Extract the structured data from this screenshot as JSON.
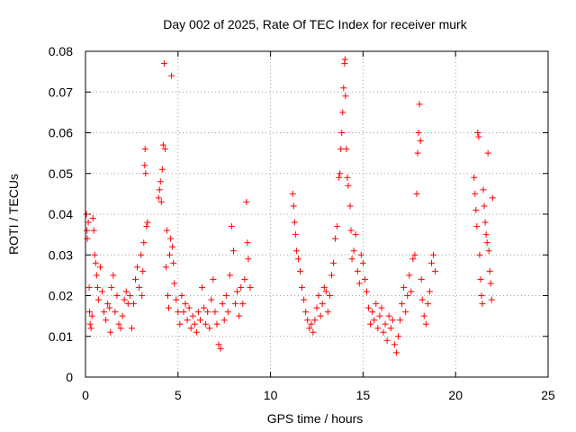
{
  "chart_data": {
    "type": "scatter",
    "title": "Day 002 of 2025, Rate Of TEC Index for receiver murk",
    "xlabel": "GPS time / hours",
    "ylabel": "ROTI / TECUs",
    "xlim": [
      0,
      25
    ],
    "ylim": [
      0,
      0.08
    ],
    "x_ticks": [
      "0",
      "5",
      "10",
      "15",
      "20",
      "25"
    ],
    "y_ticks": [
      "0",
      "0.01",
      "0.02",
      "0.03",
      "0.04",
      "0.05",
      "0.06",
      "0.07",
      "0.08"
    ],
    "grid": true,
    "marker": "+",
    "marker_color": "#ff0000",
    "series": [
      {
        "values_are": "[x_hours, roti]",
        "points": [
          [
            0.05,
            0.04
          ],
          [
            0.08,
            0.036
          ],
          [
            0.1,
            0.034
          ],
          [
            0.15,
            0.038
          ],
          [
            0.2,
            0.022
          ],
          [
            0.22,
            0.016
          ],
          [
            0.25,
            0.013
          ],
          [
            0.3,
            0.012
          ],
          [
            0.35,
            0.015
          ],
          [
            0.4,
            0.039
          ],
          [
            0.45,
            0.036
          ],
          [
            0.5,
            0.03
          ],
          [
            0.55,
            0.028
          ],
          [
            0.6,
            0.025
          ],
          [
            0.65,
            0.022
          ],
          [
            0.7,
            0.019
          ],
          [
            0.8,
            0.027
          ],
          [
            0.9,
            0.021
          ],
          [
            1.0,
            0.016
          ],
          [
            1.1,
            0.014
          ],
          [
            1.2,
            0.018
          ],
          [
            1.3,
            0.017
          ],
          [
            1.35,
            0.011
          ],
          [
            1.4,
            0.022
          ],
          [
            1.5,
            0.025
          ],
          [
            1.6,
            0.016
          ],
          [
            1.7,
            0.02
          ],
          [
            1.8,
            0.013
          ],
          [
            1.9,
            0.012
          ],
          [
            2.0,
            0.015
          ],
          [
            2.1,
            0.019
          ],
          [
            2.2,
            0.021
          ],
          [
            2.3,
            0.018
          ],
          [
            2.4,
            0.02
          ],
          [
            2.5,
            0.012
          ],
          [
            2.6,
            0.018
          ],
          [
            2.7,
            0.024
          ],
          [
            2.8,
            0.027
          ],
          [
            2.9,
            0.022
          ],
          [
            3.0,
            0.03
          ],
          [
            3.05,
            0.02
          ],
          [
            3.1,
            0.026
          ],
          [
            3.15,
            0.033
          ],
          [
            3.2,
            0.052
          ],
          [
            3.22,
            0.056
          ],
          [
            3.25,
            0.05
          ],
          [
            3.3,
            0.037
          ],
          [
            3.35,
            0.038
          ],
          [
            3.95,
            0.044
          ],
          [
            4.0,
            0.046
          ],
          [
            4.05,
            0.048
          ],
          [
            4.1,
            0.043
          ],
          [
            4.15,
            0.051
          ],
          [
            4.2,
            0.057
          ],
          [
            4.25,
            0.077
          ],
          [
            4.3,
            0.056
          ],
          [
            4.35,
            0.027
          ],
          [
            4.4,
            0.036
          ],
          [
            4.45,
            0.02
          ],
          [
            4.5,
            0.017
          ],
          [
            4.55,
            0.03
          ],
          [
            4.6,
            0.034
          ],
          [
            4.65,
            0.074
          ],
          [
            4.7,
            0.032
          ],
          [
            4.75,
            0.028
          ],
          [
            4.8,
            0.023
          ],
          [
            4.9,
            0.019
          ],
          [
            5.0,
            0.016
          ],
          [
            5.1,
            0.013
          ],
          [
            5.2,
            0.02
          ],
          [
            5.3,
            0.016
          ],
          [
            5.4,
            0.018
          ],
          [
            5.5,
            0.014
          ],
          [
            5.6,
            0.017
          ],
          [
            5.7,
            0.012
          ],
          [
            5.8,
            0.015
          ],
          [
            5.9,
            0.013
          ],
          [
            6.0,
            0.011
          ],
          [
            6.1,
            0.016
          ],
          [
            6.2,
            0.014
          ],
          [
            6.3,
            0.022
          ],
          [
            6.4,
            0.017
          ],
          [
            6.5,
            0.013
          ],
          [
            6.6,
            0.016
          ],
          [
            6.7,
            0.012
          ],
          [
            6.8,
            0.019
          ],
          [
            6.9,
            0.024
          ],
          [
            7.0,
            0.016
          ],
          [
            7.1,
            0.013
          ],
          [
            7.2,
            0.008
          ],
          [
            7.3,
            0.007
          ],
          [
            7.4,
            0.018
          ],
          [
            7.5,
            0.014
          ],
          [
            7.6,
            0.02
          ],
          [
            7.7,
            0.016
          ],
          [
            7.8,
            0.025
          ],
          [
            7.9,
            0.037
          ],
          [
            8.0,
            0.031
          ],
          [
            8.1,
            0.018
          ],
          [
            8.2,
            0.021
          ],
          [
            8.3,
            0.015
          ],
          [
            8.4,
            0.022
          ],
          [
            8.5,
            0.018
          ],
          [
            8.6,
            0.024
          ],
          [
            8.7,
            0.043
          ],
          [
            8.75,
            0.033
          ],
          [
            8.8,
            0.029
          ],
          [
            8.9,
            0.022
          ],
          [
            11.2,
            0.045
          ],
          [
            11.25,
            0.042
          ],
          [
            11.3,
            0.038
          ],
          [
            11.35,
            0.035
          ],
          [
            11.4,
            0.031
          ],
          [
            11.5,
            0.029
          ],
          [
            11.6,
            0.026
          ],
          [
            11.7,
            0.022
          ],
          [
            11.8,
            0.019
          ],
          [
            11.9,
            0.016
          ],
          [
            12.0,
            0.014
          ],
          [
            12.1,
            0.012
          ],
          [
            12.2,
            0.013
          ],
          [
            12.3,
            0.011
          ],
          [
            12.4,
            0.014
          ],
          [
            12.5,
            0.017
          ],
          [
            12.6,
            0.02
          ],
          [
            12.7,
            0.015
          ],
          [
            12.8,
            0.018
          ],
          [
            12.9,
            0.022
          ],
          [
            13.0,
            0.021
          ],
          [
            13.1,
            0.016
          ],
          [
            13.2,
            0.02
          ],
          [
            13.3,
            0.025
          ],
          [
            13.4,
            0.028
          ],
          [
            13.5,
            0.034
          ],
          [
            13.6,
            0.037
          ],
          [
            13.7,
            0.049
          ],
          [
            13.75,
            0.05
          ],
          [
            13.8,
            0.056
          ],
          [
            13.85,
            0.06
          ],
          [
            13.9,
            0.065
          ],
          [
            13.95,
            0.071
          ],
          [
            14.0,
            0.077
          ],
          [
            14.02,
            0.078
          ],
          [
            14.05,
            0.069
          ],
          [
            14.1,
            0.056
          ],
          [
            14.15,
            0.049
          ],
          [
            14.2,
            0.047
          ],
          [
            14.3,
            0.042
          ],
          [
            14.35,
            0.036
          ],
          [
            14.4,
            0.029
          ],
          [
            14.5,
            0.031
          ],
          [
            14.6,
            0.035
          ],
          [
            14.7,
            0.026
          ],
          [
            14.8,
            0.023
          ],
          [
            14.9,
            0.03
          ],
          [
            15.0,
            0.028
          ],
          [
            15.1,
            0.024
          ],
          [
            15.2,
            0.021
          ],
          [
            15.3,
            0.017
          ],
          [
            15.4,
            0.013
          ],
          [
            15.5,
            0.016
          ],
          [
            15.6,
            0.014
          ],
          [
            15.7,
            0.018
          ],
          [
            15.8,
            0.012
          ],
          [
            15.9,
            0.015
          ],
          [
            16.0,
            0.017
          ],
          [
            16.1,
            0.011
          ],
          [
            16.2,
            0.013
          ],
          [
            16.3,
            0.009
          ],
          [
            16.4,
            0.015
          ],
          [
            16.5,
            0.012
          ],
          [
            16.6,
            0.014
          ],
          [
            16.7,
            0.008
          ],
          [
            16.8,
            0.006
          ],
          [
            16.9,
            0.01
          ],
          [
            17.0,
            0.014
          ],
          [
            17.1,
            0.018
          ],
          [
            17.2,
            0.022
          ],
          [
            17.3,
            0.016
          ],
          [
            17.4,
            0.02
          ],
          [
            17.5,
            0.025
          ],
          [
            17.6,
            0.021
          ],
          [
            17.7,
            0.029
          ],
          [
            17.8,
            0.03
          ],
          [
            17.9,
            0.045
          ],
          [
            17.95,
            0.055
          ],
          [
            18.0,
            0.06
          ],
          [
            18.05,
            0.067
          ],
          [
            18.1,
            0.058
          ],
          [
            18.15,
            0.024
          ],
          [
            18.2,
            0.019
          ],
          [
            18.3,
            0.015
          ],
          [
            18.4,
            0.013
          ],
          [
            18.5,
            0.018
          ],
          [
            18.6,
            0.021
          ],
          [
            18.7,
            0.028
          ],
          [
            18.8,
            0.03
          ],
          [
            18.9,
            0.026
          ],
          [
            21.0,
            0.049
          ],
          [
            21.05,
            0.045
          ],
          [
            21.1,
            0.041
          ],
          [
            21.15,
            0.037
          ],
          [
            21.2,
            0.06
          ],
          [
            21.25,
            0.059
          ],
          [
            21.3,
            0.03
          ],
          [
            21.35,
            0.024
          ],
          [
            21.4,
            0.02
          ],
          [
            21.45,
            0.018
          ],
          [
            21.5,
            0.046
          ],
          [
            21.55,
            0.042
          ],
          [
            21.6,
            0.038
          ],
          [
            21.65,
            0.035
          ],
          [
            21.7,
            0.033
          ],
          [
            21.75,
            0.055
          ],
          [
            21.8,
            0.031
          ],
          [
            21.85,
            0.026
          ],
          [
            21.9,
            0.023
          ],
          [
            21.95,
            0.019
          ],
          [
            22.0,
            0.044
          ]
        ]
      }
    ]
  }
}
